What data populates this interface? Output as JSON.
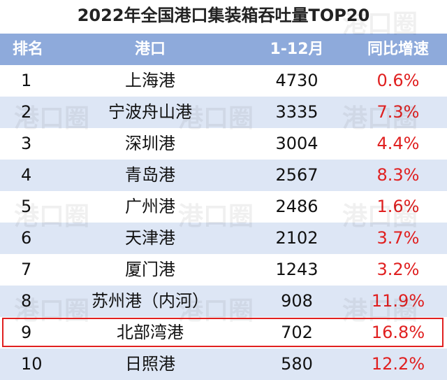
{
  "header": {
    "title": "2022年全国港口集装箱吞吐量TOP20"
  },
  "watermark": "港口圈",
  "table": {
    "columns": [
      "排名",
      "港口",
      "1-12月",
      "同比增速"
    ],
    "rows": [
      [
        1,
        "上海港",
        4730,
        "0.6%"
      ],
      [
        2,
        "宁波舟山港",
        3335,
        "7.3%"
      ],
      [
        3,
        "深圳港",
        3004,
        "4.4%"
      ],
      [
        4,
        "青岛港",
        2567,
        "8.3%"
      ],
      [
        5,
        "广州港",
        2486,
        "1.6%"
      ],
      [
        6,
        "天津港",
        2102,
        "3.7%"
      ],
      [
        7,
        "厦门港",
        1243,
        "3.2%"
      ],
      [
        8,
        "苏州港（内河）",
        908,
        "11.9%"
      ],
      [
        9,
        "北部湾港",
        702,
        "16.8%"
      ],
      [
        10,
        "日照港",
        580,
        "12.2%"
      ]
    ],
    "highlight_row": 8,
    "highlight_color": "#e02020"
  }
}
